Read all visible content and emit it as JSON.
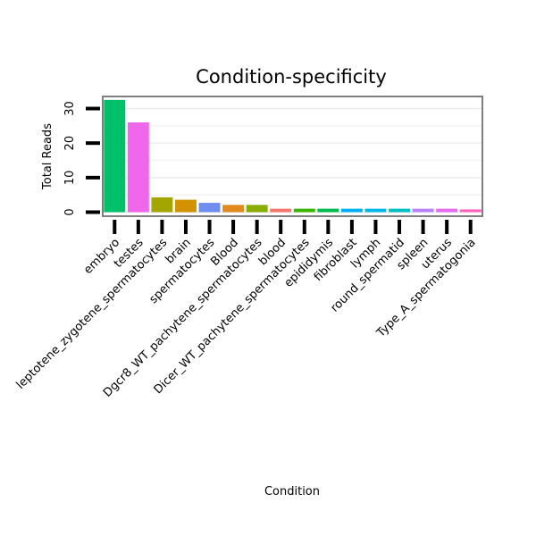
{
  "chart_data": {
    "type": "bar",
    "title": "Condition-specificity",
    "xlabel": "Condition",
    "ylabel": "Total Reads",
    "ylim": [
      0,
      33.5
    ],
    "yticks": [
      0,
      10,
      20,
      30
    ],
    "grid": true,
    "categories": [
      "embryo",
      "testes",
      "leptotene_zygotene_spermatocytes",
      "brain",
      "spermatocytes",
      "Blood",
      "Dgcr8_WT_pachytene_spermatocytes",
      "blood",
      "Dicer_WT_pachytene_spermatocytes",
      "epididymis",
      "fibroblast",
      "lymph",
      "round_spermatid",
      "spleen",
      "uterus",
      "Type_A_spermatogonia"
    ],
    "category_display": [
      "embryo",
      "testes",
      "leptotene_zygotene_spermatocytes",
      "brain",
      "spermatocytes",
      "Blood",
      "Dgcr8_WT_pachytene_spermatocytes",
      "blood",
      "Dicer_WT_pachytene_spermatocytes",
      "epididymis",
      "fibroblast",
      "lymph",
      "round_spermatid",
      "spleen",
      "uterus",
      "Type_A_spermatogonia"
    ],
    "values": [
      32.5,
      26.0,
      4.3,
      3.6,
      2.7,
      2.1,
      2.1,
      1.0,
      1.0,
      1.0,
      1.0,
      1.0,
      1.0,
      1.0,
      1.0,
      0.8
    ],
    "colors": [
      "#00c06a",
      "#ef67eb",
      "#a3a500",
      "#d39200",
      "#6f8ef0",
      "#e08a1e",
      "#8aab00",
      "#f8766d",
      "#39b600",
      "#00bb4e",
      "#00b0f6",
      "#00b8e7",
      "#00bfc4",
      "#b983ff",
      "#e76bf3",
      "#ff62bc"
    ]
  }
}
